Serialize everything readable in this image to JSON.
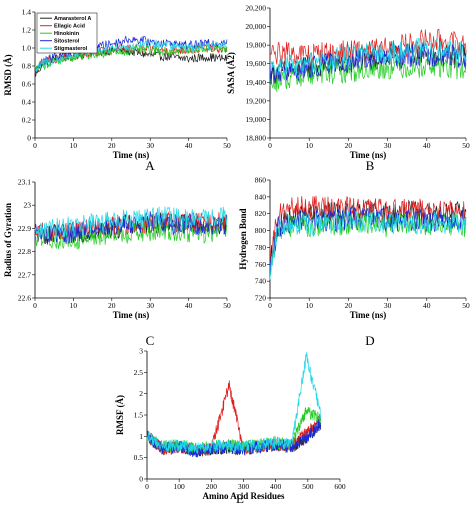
{
  "colors": {
    "Amarasterol A": "#222222",
    "Ellagic Acid": "#e02020",
    "Hinokinin": "#22cc22",
    "Sitosterol": "#1a2ad8",
    "Stigmasterol": "#22d8e6"
  },
  "legend": {
    "entries": [
      "Amarasterol A",
      "Ellagic Acid",
      "Hinokinin",
      "Sitosterol",
      "Stigmasterol"
    ],
    "placement": "top-left of panel A"
  },
  "chart_data": [
    {
      "id": "A",
      "panel_label": "A",
      "type": "line",
      "xlabel": "Time (ns)",
      "ylabel": "RMSD (Å)",
      "xlim": [
        0,
        50
      ],
      "ylim": [
        0,
        1.4
      ],
      "xticks": [
        "0",
        "10",
        "20",
        "30",
        "40",
        "50"
      ],
      "yticks": [
        "0",
        "0.2",
        "0.4",
        "0.6",
        "0.8",
        "1.0",
        "1.2",
        "1.4"
      ],
      "series": [
        {
          "name": "Amarasterol A",
          "x": [
            0,
            2,
            5,
            10,
            15,
            20,
            25,
            30,
            35,
            40,
            45,
            50
          ],
          "y": [
            0.7,
            0.82,
            0.88,
            0.92,
            0.95,
            0.97,
            0.96,
            0.92,
            0.9,
            0.88,
            0.9,
            0.88
          ]
        },
        {
          "name": "Ellagic Acid",
          "x": [
            0,
            2,
            5,
            10,
            15,
            20,
            25,
            30,
            35,
            40,
            45,
            50
          ],
          "y": [
            0.75,
            0.85,
            0.88,
            0.9,
            0.95,
            0.98,
            1.0,
            0.98,
            0.97,
            0.98,
            1.0,
            0.98
          ]
        },
        {
          "name": "Hinokinin",
          "x": [
            0,
            2,
            5,
            10,
            15,
            20,
            25,
            30,
            35,
            40,
            45,
            50
          ],
          "y": [
            0.75,
            0.8,
            0.85,
            0.9,
            0.93,
            0.95,
            0.97,
            0.98,
            0.96,
            0.98,
            1.0,
            0.99
          ]
        },
        {
          "name": "Sitosterol",
          "x": [
            0,
            2,
            5,
            10,
            15,
            20,
            25,
            30,
            35,
            40,
            45,
            50
          ],
          "y": [
            0.72,
            0.85,
            0.9,
            0.97,
            1.0,
            1.05,
            1.1,
            1.07,
            1.05,
            1.03,
            1.05,
            1.07
          ]
        },
        {
          "name": "Stigmasterol",
          "x": [
            0,
            2,
            5,
            10,
            15,
            20,
            25,
            30,
            35,
            40,
            45,
            50
          ],
          "y": [
            0.75,
            0.83,
            0.87,
            0.92,
            0.97,
            1.0,
            1.02,
            1.05,
            1.03,
            1.0,
            1.03,
            1.05
          ]
        }
      ]
    },
    {
      "id": "B",
      "panel_label": "B",
      "type": "line",
      "xlabel": "Time (ns)",
      "ylabel": "SASA (Å2)",
      "xlim": [
        0,
        50
      ],
      "ylim": [
        18800,
        20200
      ],
      "xticks": [
        "0",
        "10",
        "20",
        "30",
        "40",
        "50"
      ],
      "yticks": [
        "18,800",
        "19,000",
        "19,200",
        "19,400",
        "19,600",
        "19,800",
        "20,000",
        "20,200"
      ],
      "series": [
        {
          "name": "Amarasterol A",
          "x": [
            0,
            5,
            10,
            15,
            20,
            25,
            30,
            35,
            40,
            45,
            50
          ],
          "y": [
            19500,
            19520,
            19560,
            19600,
            19640,
            19650,
            19660,
            19700,
            19720,
            19680,
            19660
          ]
        },
        {
          "name": "Ellagic Acid",
          "x": [
            0,
            5,
            10,
            15,
            20,
            25,
            30,
            35,
            40,
            45,
            50
          ],
          "y": [
            19700,
            19720,
            19700,
            19720,
            19730,
            19740,
            19760,
            19800,
            19860,
            19840,
            19800
          ]
        },
        {
          "name": "Hinokinin",
          "x": [
            0,
            5,
            10,
            15,
            20,
            25,
            30,
            35,
            40,
            45,
            50
          ],
          "y": [
            19400,
            19450,
            19480,
            19500,
            19520,
            19540,
            19560,
            19560,
            19580,
            19560,
            19540
          ]
        },
        {
          "name": "Sitosterol",
          "x": [
            0,
            5,
            10,
            15,
            20,
            25,
            30,
            35,
            40,
            45,
            50
          ],
          "y": [
            19480,
            19520,
            19560,
            19600,
            19620,
            19640,
            19660,
            19680,
            19700,
            19690,
            19680
          ]
        },
        {
          "name": "Stigmasterol",
          "x": [
            0,
            5,
            10,
            15,
            20,
            25,
            30,
            35,
            40,
            45,
            50
          ],
          "y": [
            19560,
            19580,
            19600,
            19640,
            19680,
            19700,
            19720,
            19740,
            19760,
            19740,
            19720
          ]
        }
      ]
    },
    {
      "id": "C",
      "panel_label": "C",
      "type": "line",
      "xlabel": "Time (ns)",
      "ylabel": "Radius of Gyration",
      "xlim": [
        0,
        50
      ],
      "ylim": [
        22.6,
        23.1
      ],
      "xticks": [
        "0",
        "10",
        "20",
        "30",
        "40",
        "50"
      ],
      "yticks": [
        "22.6",
        "22.7",
        "22.8",
        "22.9",
        "23",
        "23.1"
      ],
      "series": [
        {
          "name": "Amarasterol A",
          "x": [
            0,
            5,
            10,
            15,
            20,
            25,
            30,
            35,
            40,
            45,
            50
          ],
          "y": [
            22.88,
            22.87,
            22.88,
            22.89,
            22.9,
            22.91,
            22.92,
            22.93,
            22.92,
            22.91,
            22.92
          ]
        },
        {
          "name": "Ellagic Acid",
          "x": [
            0,
            5,
            10,
            15,
            20,
            25,
            30,
            35,
            40,
            45,
            50
          ],
          "y": [
            22.89,
            22.88,
            22.89,
            22.9,
            22.91,
            22.92,
            22.92,
            22.93,
            22.93,
            22.92,
            22.93
          ]
        },
        {
          "name": "Hinokinin",
          "x": [
            0,
            5,
            10,
            15,
            20,
            25,
            30,
            35,
            40,
            45,
            50
          ],
          "y": [
            22.86,
            22.85,
            22.85,
            22.86,
            22.87,
            22.88,
            22.88,
            22.89,
            22.88,
            22.88,
            22.89
          ]
        },
        {
          "name": "Sitosterol",
          "x": [
            0,
            5,
            10,
            15,
            20,
            25,
            30,
            35,
            40,
            45,
            50
          ],
          "y": [
            22.88,
            22.87,
            22.88,
            22.9,
            22.91,
            22.92,
            22.93,
            22.92,
            22.92,
            22.91,
            22.92
          ]
        },
        {
          "name": "Stigmasterol",
          "x": [
            0,
            5,
            10,
            15,
            20,
            25,
            30,
            35,
            40,
            45,
            50
          ],
          "y": [
            22.9,
            22.9,
            22.91,
            22.92,
            22.93,
            22.94,
            22.95,
            22.95,
            22.94,
            22.94,
            22.95
          ]
        }
      ]
    },
    {
      "id": "D",
      "panel_label": "D",
      "type": "line",
      "xlabel": "Time (ns)",
      "ylabel": "Hydrogen Bond",
      "xlim": [
        0,
        50
      ],
      "ylim": [
        720,
        860
      ],
      "xticks": [
        "0",
        "10",
        "20",
        "30",
        "40",
        "50"
      ],
      "yticks": [
        "720",
        "740",
        "760",
        "780",
        "800",
        "820",
        "840",
        "860"
      ],
      "series": [
        {
          "name": "Amarasterol A",
          "x": [
            0,
            2,
            5,
            10,
            15,
            20,
            25,
            30,
            35,
            40,
            45,
            50
          ],
          "y": [
            760,
            805,
            815,
            818,
            820,
            820,
            822,
            820,
            822,
            820,
            822,
            820
          ]
        },
        {
          "name": "Ellagic Acid",
          "x": [
            0,
            2,
            5,
            10,
            15,
            20,
            25,
            30,
            35,
            40,
            45,
            50
          ],
          "y": [
            770,
            818,
            825,
            828,
            828,
            826,
            826,
            825,
            824,
            824,
            823,
            824
          ]
        },
        {
          "name": "Hinokinin",
          "x": [
            0,
            2,
            5,
            10,
            15,
            20,
            25,
            30,
            35,
            40,
            45,
            50
          ],
          "y": [
            750,
            800,
            805,
            806,
            806,
            808,
            808,
            806,
            808,
            807,
            808,
            806
          ]
        },
        {
          "name": "Sitosterol",
          "x": [
            0,
            2,
            5,
            10,
            15,
            20,
            25,
            30,
            35,
            40,
            45,
            50
          ],
          "y": [
            755,
            805,
            810,
            812,
            812,
            814,
            814,
            812,
            812,
            813,
            812,
            812
          ]
        },
        {
          "name": "Stigmasterol",
          "x": [
            0,
            2,
            5,
            10,
            15,
            20,
            25,
            30,
            35,
            40,
            45,
            50
          ],
          "y": [
            752,
            800,
            806,
            808,
            808,
            810,
            810,
            810,
            808,
            809,
            810,
            808
          ]
        }
      ]
    },
    {
      "id": "E",
      "panel_label": "E",
      "type": "line",
      "xlabel": "Amino Acid Residues",
      "ylabel": "RMSF (Å)",
      "xlim": [
        0,
        600
      ],
      "ylim": [
        0,
        3
      ],
      "xticks": [
        "0",
        "100",
        "200",
        "300",
        "400",
        "500",
        "600"
      ],
      "yticks": [
        "0",
        "0.5",
        "1",
        "1.5",
        "2",
        "2.5",
        "3"
      ],
      "series": [
        {
          "name": "Amarasterol A",
          "x": [
            0,
            50,
            100,
            150,
            200,
            250,
            300,
            350,
            400,
            450,
            500,
            540
          ],
          "y": [
            1.0,
            0.7,
            0.75,
            0.65,
            0.7,
            0.75,
            0.7,
            0.75,
            0.8,
            0.75,
            1.0,
            1.3
          ]
        },
        {
          "name": "Ellagic Acid",
          "x": [
            0,
            50,
            100,
            150,
            200,
            255,
            300,
            350,
            400,
            450,
            500,
            540
          ],
          "y": [
            1.0,
            0.7,
            0.75,
            0.7,
            0.7,
            2.2,
            0.7,
            0.75,
            0.8,
            0.8,
            1.1,
            1.4
          ]
        },
        {
          "name": "Hinokinin",
          "x": [
            0,
            50,
            100,
            150,
            200,
            250,
            300,
            350,
            400,
            450,
            495,
            540
          ],
          "y": [
            1.0,
            0.75,
            0.8,
            0.7,
            0.75,
            0.8,
            0.75,
            0.8,
            0.85,
            0.8,
            1.6,
            1.4
          ]
        },
        {
          "name": "Sitosterol",
          "x": [
            0,
            50,
            100,
            150,
            200,
            250,
            300,
            350,
            400,
            450,
            500,
            540
          ],
          "y": [
            1.0,
            0.7,
            0.75,
            0.65,
            0.7,
            0.75,
            0.7,
            0.75,
            0.8,
            0.75,
            1.0,
            1.3
          ]
        },
        {
          "name": "Stigmasterol",
          "x": [
            0,
            50,
            100,
            150,
            200,
            250,
            300,
            350,
            400,
            450,
            495,
            540
          ],
          "y": [
            1.0,
            0.75,
            0.8,
            0.7,
            0.75,
            0.8,
            0.75,
            0.8,
            0.85,
            0.8,
            2.9,
            1.5
          ]
        }
      ]
    }
  ]
}
